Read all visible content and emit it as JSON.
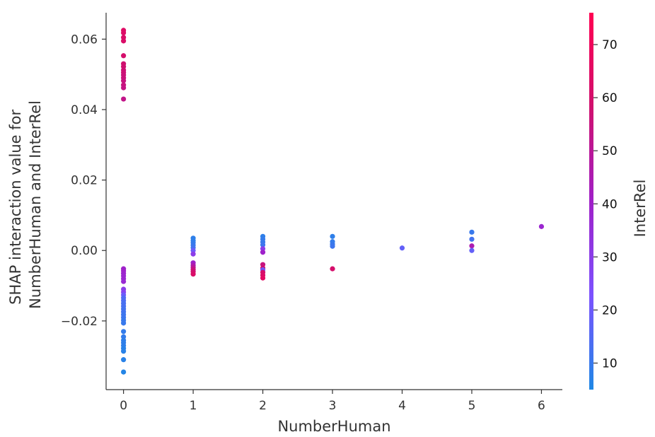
{
  "chart_data": {
    "type": "scatter",
    "xlabel": "NumberHuman",
    "ylabel_lines": [
      "SHAP interaction value for",
      "NumberHuman and InterRel"
    ],
    "colorbar_label": "InterRel",
    "xlim": [
      -0.25,
      6.3
    ],
    "ylim": [
      -0.0395,
      0.0675
    ],
    "xticks": [
      0,
      1,
      2,
      3,
      4,
      5,
      6
    ],
    "xtick_labels": [
      "0",
      "1",
      "2",
      "3",
      "4",
      "5",
      "6"
    ],
    "yticks": [
      -0.02,
      0.0,
      0.02,
      0.04,
      0.06
    ],
    "ytick_labels": [
      "−0.02",
      "0.00",
      "0.02",
      "0.04",
      "0.06"
    ],
    "colorbar_range": [
      5,
      76
    ],
    "colorbar_ticks": [
      10,
      20,
      30,
      40,
      50,
      60,
      70
    ],
    "colorbar_tick_labels": [
      "10",
      "20",
      "30",
      "40",
      "50",
      "60",
      "70"
    ],
    "colormap": [
      "#1e88e5",
      "#7c52ff",
      "#a020c8",
      "#d0106e",
      "#ff0052"
    ],
    "grid": false,
    "points": [
      {
        "x": 0,
        "y": 0.0625,
        "c": 64
      },
      {
        "x": 0,
        "y": 0.0618,
        "c": 63
      },
      {
        "x": 0,
        "y": 0.0605,
        "c": 62
      },
      {
        "x": 0,
        "y": 0.0595,
        "c": 62
      },
      {
        "x": 0,
        "y": 0.0553,
        "c": 60
      },
      {
        "x": 0,
        "y": 0.053,
        "c": 58
      },
      {
        "x": 0,
        "y": 0.0522,
        "c": 58
      },
      {
        "x": 0,
        "y": 0.0512,
        "c": 57
      },
      {
        "x": 0,
        "y": 0.0505,
        "c": 57
      },
      {
        "x": 0,
        "y": 0.0498,
        "c": 56
      },
      {
        "x": 0,
        "y": 0.049,
        "c": 56
      },
      {
        "x": 0,
        "y": 0.0482,
        "c": 55
      },
      {
        "x": 0,
        "y": 0.047,
        "c": 55
      },
      {
        "x": 0,
        "y": 0.0462,
        "c": 54
      },
      {
        "x": 0,
        "y": 0.043,
        "c": 53
      },
      {
        "x": 0,
        "y": -0.0052,
        "c": 40
      },
      {
        "x": 0,
        "y": -0.0058,
        "c": 40
      },
      {
        "x": 0,
        "y": -0.0065,
        "c": 39
      },
      {
        "x": 0,
        "y": -0.0072,
        "c": 38
      },
      {
        "x": 0,
        "y": -0.008,
        "c": 38
      },
      {
        "x": 0,
        "y": -0.0088,
        "c": 37
      },
      {
        "x": 0,
        "y": -0.011,
        "c": 30
      },
      {
        "x": 0,
        "y": -0.0118,
        "c": 28
      },
      {
        "x": 0,
        "y": -0.0126,
        "c": 20
      },
      {
        "x": 0,
        "y": -0.0134,
        "c": 15
      },
      {
        "x": 0,
        "y": -0.0142,
        "c": 14
      },
      {
        "x": 0,
        "y": -0.015,
        "c": 13
      },
      {
        "x": 0,
        "y": -0.0158,
        "c": 13
      },
      {
        "x": 0,
        "y": -0.0166,
        "c": 12
      },
      {
        "x": 0,
        "y": -0.0174,
        "c": 12
      },
      {
        "x": 0,
        "y": -0.0182,
        "c": 11
      },
      {
        "x": 0,
        "y": -0.019,
        "c": 11
      },
      {
        "x": 0,
        "y": -0.0198,
        "c": 10
      },
      {
        "x": 0,
        "y": -0.0206,
        "c": 10
      },
      {
        "x": 0,
        "y": -0.023,
        "c": 9
      },
      {
        "x": 0,
        "y": -0.0245,
        "c": 9
      },
      {
        "x": 0,
        "y": -0.0255,
        "c": 8
      },
      {
        "x": 0,
        "y": -0.0262,
        "c": 8
      },
      {
        "x": 0,
        "y": -0.027,
        "c": 8
      },
      {
        "x": 0,
        "y": -0.0278,
        "c": 7
      },
      {
        "x": 0,
        "y": -0.0286,
        "c": 7
      },
      {
        "x": 0,
        "y": -0.031,
        "c": 7
      },
      {
        "x": 0,
        "y": -0.0345,
        "c": 6
      },
      {
        "x": 1,
        "y": 0.0035,
        "c": 8
      },
      {
        "x": 1,
        "y": 0.0028,
        "c": 8
      },
      {
        "x": 1,
        "y": 0.0022,
        "c": 9
      },
      {
        "x": 1,
        "y": 0.0015,
        "c": 10
      },
      {
        "x": 1,
        "y": 0.0008,
        "c": 12
      },
      {
        "x": 1,
        "y": 0.0,
        "c": 20
      },
      {
        "x": 1,
        "y": -0.001,
        "c": 30
      },
      {
        "x": 1,
        "y": -0.0035,
        "c": 40
      },
      {
        "x": 1,
        "y": -0.0042,
        "c": 45
      },
      {
        "x": 1,
        "y": -0.0048,
        "c": 50
      },
      {
        "x": 1,
        "y": -0.0054,
        "c": 55
      },
      {
        "x": 1,
        "y": -0.006,
        "c": 58
      },
      {
        "x": 1,
        "y": -0.0067,
        "c": 62
      },
      {
        "x": 2,
        "y": 0.004,
        "c": 8
      },
      {
        "x": 2,
        "y": 0.0032,
        "c": 9
      },
      {
        "x": 2,
        "y": 0.0024,
        "c": 10
      },
      {
        "x": 2,
        "y": 0.0016,
        "c": 11
      },
      {
        "x": 2,
        "y": 0.0005,
        "c": 30
      },
      {
        "x": 2,
        "y": -0.0005,
        "c": 40
      },
      {
        "x": 2,
        "y": -0.004,
        "c": 55
      },
      {
        "x": 2,
        "y": -0.005,
        "c": 58
      },
      {
        "x": 2,
        "y": -0.0055,
        "c": 20
      },
      {
        "x": 2,
        "y": -0.0062,
        "c": 60
      },
      {
        "x": 2,
        "y": -0.007,
        "c": 62
      },
      {
        "x": 2,
        "y": -0.0078,
        "c": 66
      },
      {
        "x": 3,
        "y": 0.004,
        "c": 8
      },
      {
        "x": 3,
        "y": 0.0025,
        "c": 9
      },
      {
        "x": 3,
        "y": 0.0018,
        "c": 10
      },
      {
        "x": 3,
        "y": 0.0012,
        "c": 11
      },
      {
        "x": 3,
        "y": -0.0052,
        "c": 60
      },
      {
        "x": 4,
        "y": 0.0007,
        "c": 18
      },
      {
        "x": 5,
        "y": 0.0052,
        "c": 10
      },
      {
        "x": 5,
        "y": 0.0032,
        "c": 12
      },
      {
        "x": 5,
        "y": 0.0013,
        "c": 45
      },
      {
        "x": 5,
        "y": 0.0,
        "c": 18
      },
      {
        "x": 6,
        "y": 0.0068,
        "c": 38
      }
    ]
  }
}
